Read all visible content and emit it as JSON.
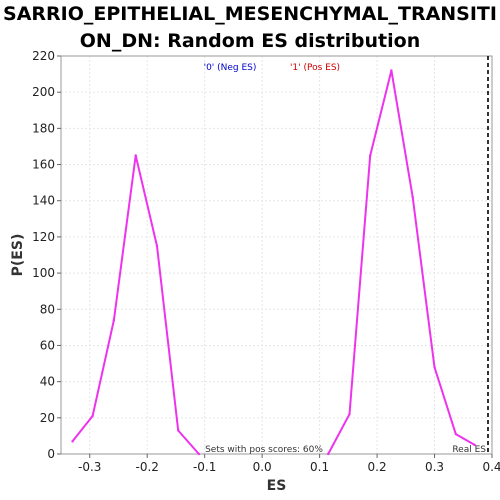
{
  "chart_data": {
    "type": "line",
    "title_line1": "SARRIO_EPITHELIAL_MESENCHYMAL_TRANSITI",
    "title_line2": "ON_DN: Random ES distribution",
    "xlabel": "ES",
    "ylabel": "P(ES)",
    "xlim": [
      -0.35,
      0.4
    ],
    "ylim": [
      0,
      220
    ],
    "xticks": [
      -0.3,
      -0.2,
      -0.1,
      0.0,
      0.1,
      0.2,
      0.3,
      0.4
    ],
    "xtick_labels": [
      "-0.3",
      "-0.2",
      "-0.1",
      "0.0",
      "0.1",
      "0.2",
      "0.3",
      "0.4"
    ],
    "yticks": [
      0,
      20,
      40,
      60,
      80,
      100,
      120,
      140,
      160,
      180,
      200,
      220
    ],
    "ytick_labels": [
      "0",
      "20",
      "40",
      "60",
      "80",
      "100",
      "120",
      "140",
      "160",
      "180",
      "200",
      "220"
    ],
    "grid": true,
    "legend": [
      {
        "label": "'0' (Neg ES)",
        "color": "#0000cc"
      },
      {
        "label": "'1' (Pos ES)",
        "color": "#cc0000"
      }
    ],
    "legend_placement": "top-center",
    "series": [
      {
        "color": "#ee33ee",
        "x": [
          -0.33,
          -0.295,
          -0.258,
          -0.22,
          -0.183,
          -0.146,
          -0.11
        ],
        "y": [
          7,
          21,
          74,
          165,
          115,
          13,
          0
        ]
      },
      {
        "color": "#ee33ee",
        "x": [
          0.115,
          0.152,
          0.188,
          0.225,
          0.262,
          0.3,
          0.337,
          0.37
        ],
        "y": [
          0,
          22,
          165,
          212,
          142,
          48,
          11,
          5
        ]
      }
    ],
    "real_es": {
      "x": 0.4,
      "label": "Real ES",
      "color": "#000000"
    },
    "annotation": "Sets with pos scores: 60%"
  }
}
